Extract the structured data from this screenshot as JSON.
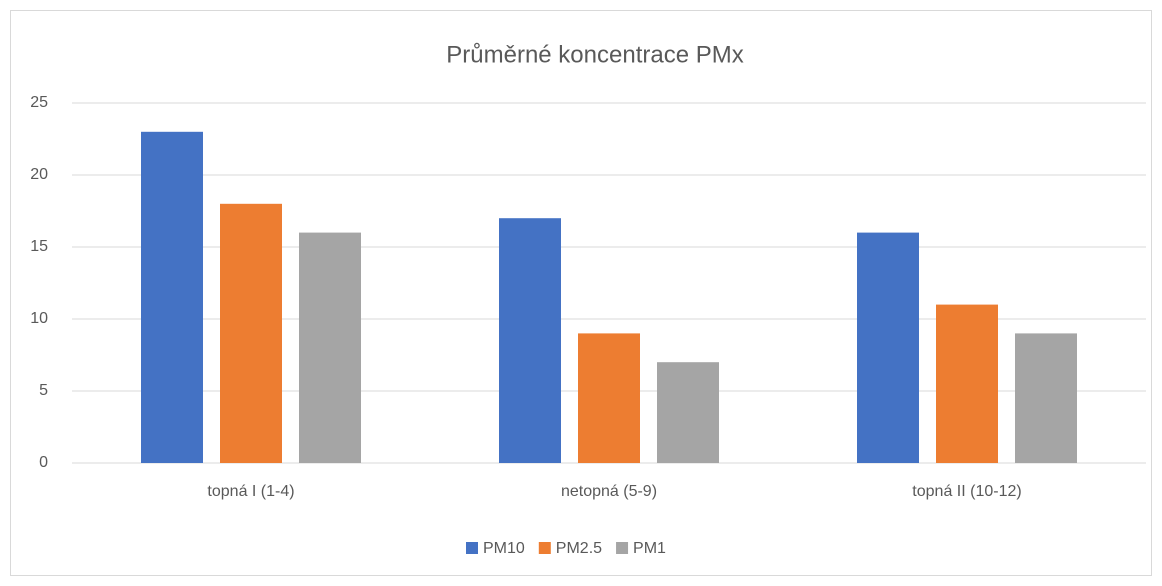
{
  "chart_data": {
    "type": "bar",
    "title": "Průměrné koncentrace PMx",
    "categories": [
      "topná I (1-4)",
      "netopná (5-9)",
      "topná II (10-12)"
    ],
    "series": [
      {
        "name": "PM10",
        "color": "#4472c4",
        "values": [
          23,
          17,
          16
        ]
      },
      {
        "name": "PM2.5",
        "color": "#ed7d31",
        "values": [
          18,
          9,
          11
        ]
      },
      {
        "name": "PM1",
        "color": "#a5a5a5",
        "values": [
          16,
          7,
          9
        ]
      }
    ],
    "ylim": [
      0,
      25
    ],
    "yticks": [
      0,
      5,
      10,
      15,
      20,
      25
    ],
    "grid": true,
    "legend": "bottom"
  }
}
